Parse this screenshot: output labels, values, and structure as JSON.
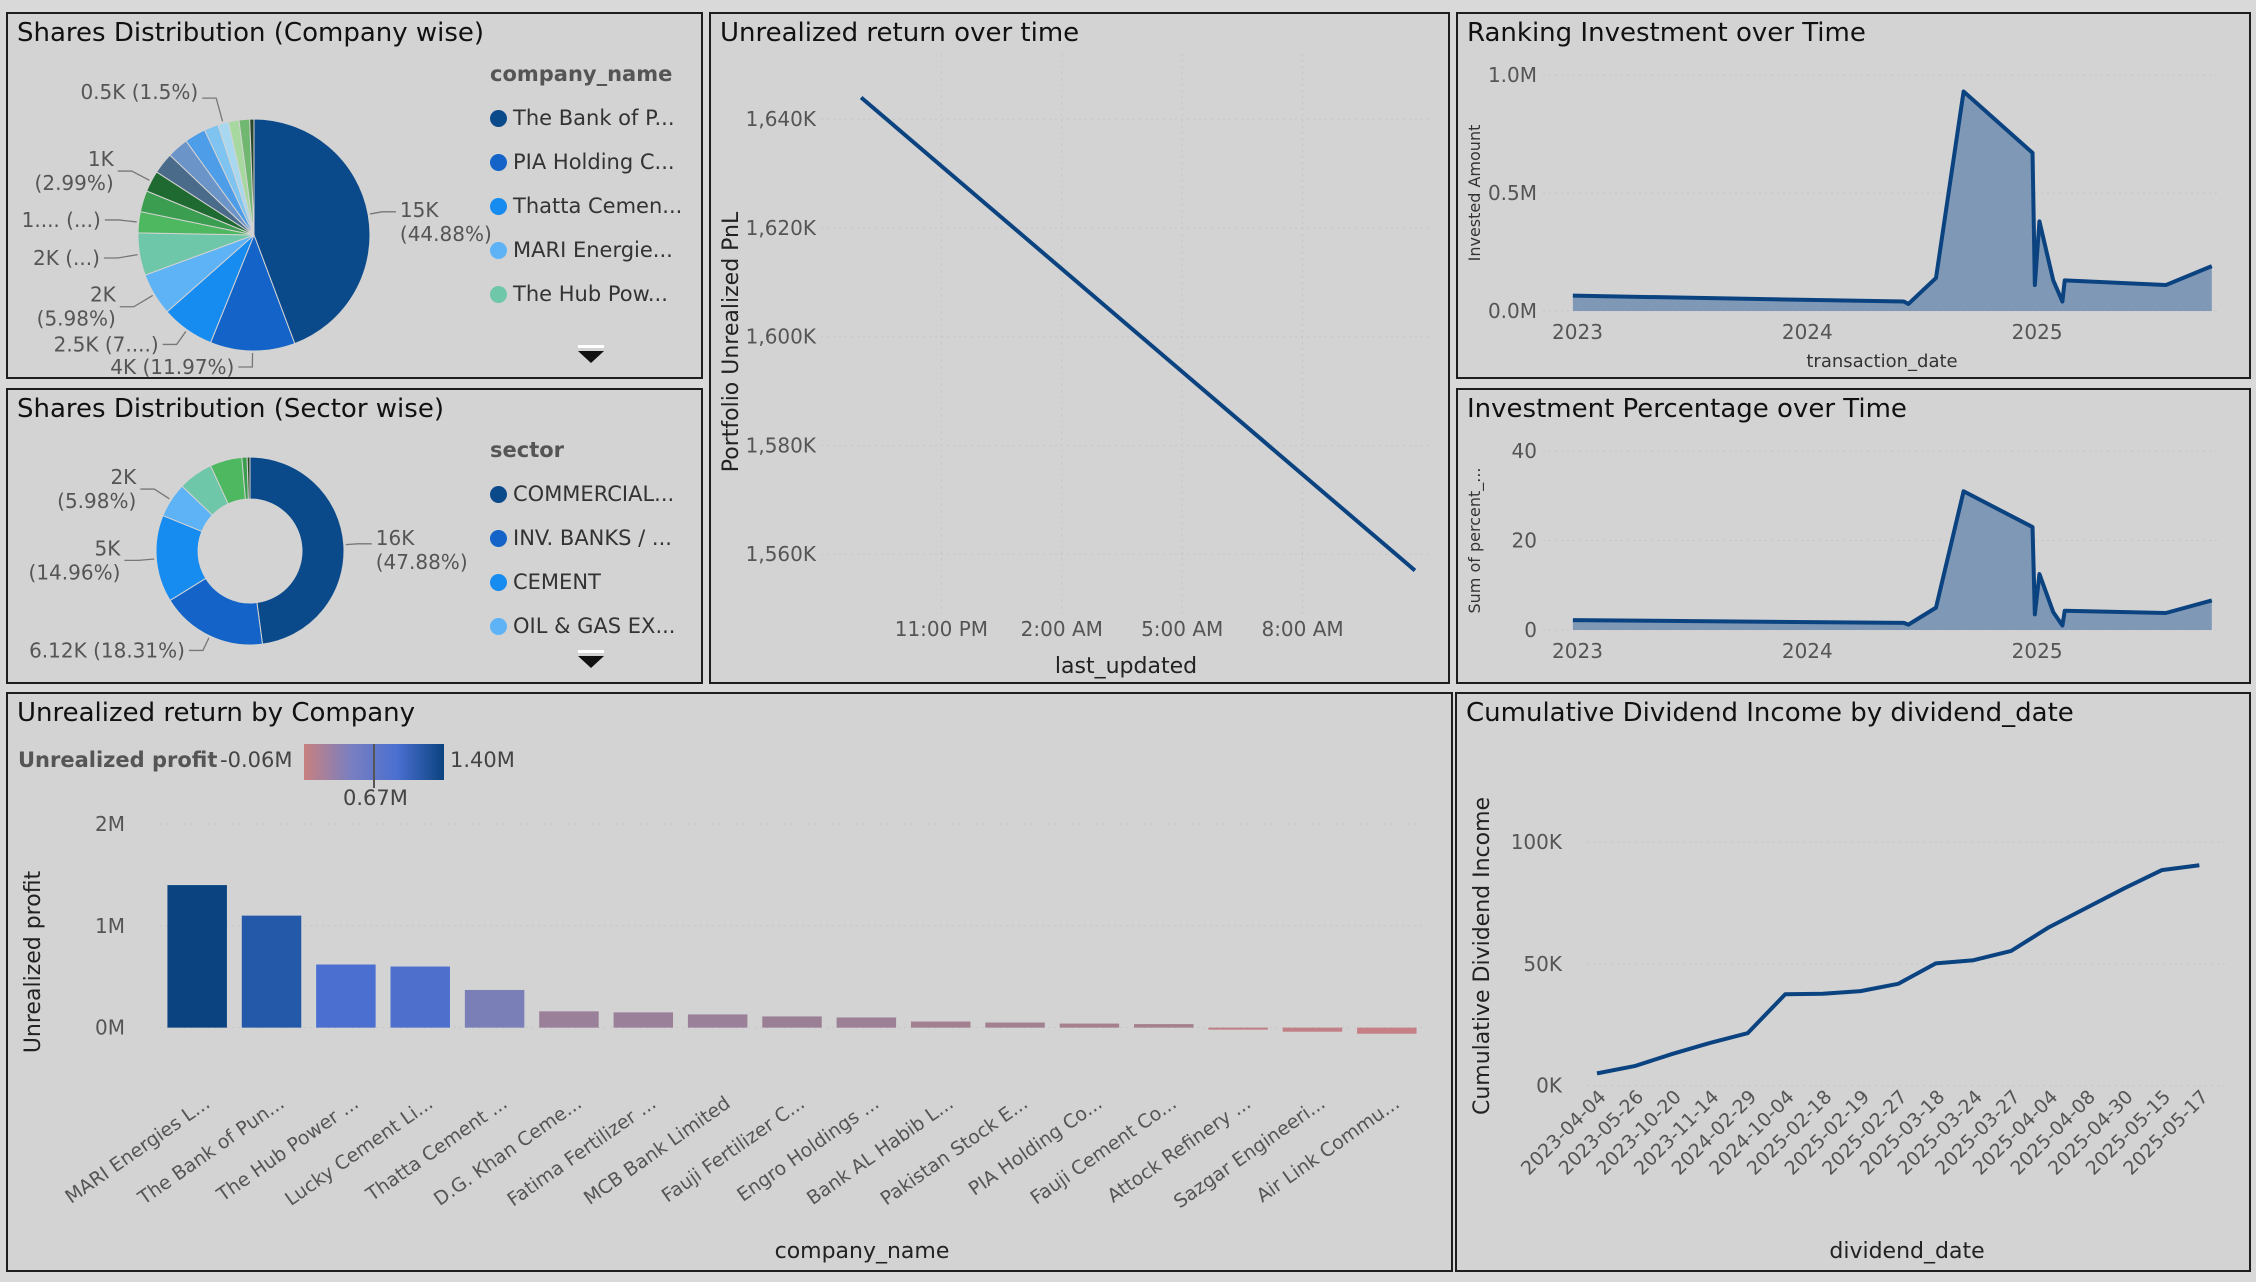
{
  "panels": {
    "company_pie": {
      "title": "Shares Distribution (Company wise)",
      "legend_title": "company_name"
    },
    "sector_donut": {
      "title": "Shares Distribution (Sector wise)",
      "legend_title": "sector"
    },
    "unrealized_time": {
      "title": "Unrealized return over time"
    },
    "ranking": {
      "title": "Ranking Investment over Time"
    },
    "percentage": {
      "title": "Investment Percentage over Time"
    },
    "by_company": {
      "title": "Unrealized return by Company",
      "gradient_title": "Unrealized profit",
      "gradient_min": "-0.06M",
      "gradient_mid": "0.67M",
      "gradient_max": "1.40M"
    },
    "dividend": {
      "title": "Cumulative Dividend Income by dividend_date"
    }
  },
  "colors": {
    "primary": "#0b4380",
    "area": "#7f98b6",
    "panel_bg": "#d3d3d3"
  },
  "icons": {
    "more": "chevron-down-icon"
  },
  "chart_data": [
    {
      "id": "company_pie",
      "type": "pie",
      "legend": [
        "The Bank of P...",
        "PIA Holding C...",
        "Thatta Cemen...",
        "MARI Energie...",
        "The Hub Pow..."
      ],
      "slices": [
        {
          "value": 44.88,
          "color": "#0b4a8a",
          "label": "15K\n(44.88%)"
        },
        {
          "value": 11.97,
          "color": "#1363c8",
          "label": "4K (11.97%)"
        },
        {
          "value": 7.48,
          "color": "#168bf0",
          "label": "2.5K (7....)"
        },
        {
          "value": 5.98,
          "color": "#5db3f5",
          "label": "2K\n(5.98%)"
        },
        {
          "value": 5.98,
          "color": "#6ec7a8",
          "label": "2K (...)"
        },
        {
          "value": 2.99,
          "color": "#4db860",
          "label": "1.... (...)"
        },
        {
          "value": 2.99,
          "color": "#3a9d4f",
          "label": ""
        },
        {
          "value": 2.99,
          "color": "#1f6a30",
          "label": "1K\n(2.99%)"
        },
        {
          "value": 2.99,
          "color": "#4a6b8a",
          "label": ""
        },
        {
          "value": 2.99,
          "color": "#6b95c8",
          "label": ""
        },
        {
          "value": 2.99,
          "color": "#4d9de8",
          "label": ""
        },
        {
          "value": 2.0,
          "color": "#7fc3f0",
          "label": ""
        },
        {
          "value": 1.5,
          "color": "#a8d8f0",
          "label": "0.5K (1.5%)"
        },
        {
          "value": 1.5,
          "color": "#a6d8a0",
          "label": ""
        },
        {
          "value": 1.5,
          "color": "#70b870",
          "label": ""
        },
        {
          "value": 0.6,
          "color": "#2b4a2b",
          "label": ""
        }
      ]
    },
    {
      "id": "sector_donut",
      "type": "pie",
      "legend": [
        "COMMERCIAL...",
        "INV. BANKS / ...",
        "CEMENT",
        "OIL & GAS EX..."
      ],
      "slices": [
        {
          "value": 47.88,
          "color": "#0b4a8a",
          "label": "16K\n(47.88%)"
        },
        {
          "value": 18.31,
          "color": "#1363c8",
          "label": "6.12K (18.31%)"
        },
        {
          "value": 14.96,
          "color": "#168bf0",
          "label": "5K\n(14.96%)"
        },
        {
          "value": 5.98,
          "color": "#5db3f5",
          "label": "2K\n(5.98%)"
        },
        {
          "value": 5.98,
          "color": "#6ec7a8",
          "label": ""
        },
        {
          "value": 5.5,
          "color": "#4db860",
          "label": ""
        },
        {
          "value": 0.9,
          "color": "#3a9d4f",
          "label": ""
        },
        {
          "value": 0.49,
          "color": "#2b4a2b",
          "label": ""
        }
      ]
    },
    {
      "id": "unrealized_time",
      "type": "line",
      "xlabel": "last_updated",
      "ylabel": "Portfolio Unrealized PnL",
      "x_ticks": [
        "11:00 PM",
        "2:00 AM",
        "5:00 AM",
        "8:00 AM"
      ],
      "x_tick_pos": [
        2.0,
        5.0,
        8.0,
        11.0
      ],
      "x_range": [
        -1.0,
        14.2
      ],
      "y_ticks": [
        "1,560K",
        "1,580K",
        "1,600K",
        "1,620K",
        "1,640K"
      ],
      "y_tick_vals": [
        1560,
        1580,
        1600,
        1620,
        1640
      ],
      "ylim": [
        1549,
        1652
      ],
      "points": [
        [
          0.0,
          1644
        ],
        [
          13.8,
          1557
        ]
      ]
    },
    {
      "id": "ranking",
      "type": "area",
      "xlabel": "transaction_date",
      "ylabel": "Invested Amount",
      "x_ticks": [
        "2023",
        "2024",
        "2025"
      ],
      "x_tick_vals": [
        2023,
        2024,
        2025
      ],
      "x_range": [
        2022.85,
        2025.8
      ],
      "y_ticks": [
        "0.0M",
        "0.5M",
        "1.0M"
      ],
      "y_tick_vals": [
        0,
        0.5,
        1.0
      ],
      "ylim": [
        0,
        1.0
      ],
      "points": [
        [
          2022.98,
          0.065
        ],
        [
          2024.42,
          0.04
        ],
        [
          2024.44,
          0.03
        ],
        [
          2024.56,
          0.14
        ],
        [
          2024.68,
          0.93
        ],
        [
          2024.98,
          0.67
        ],
        [
          2024.99,
          0.11
        ],
        [
          2025.01,
          0.38
        ],
        [
          2025.07,
          0.13
        ],
        [
          2025.11,
          0.04
        ],
        [
          2025.12,
          0.13
        ],
        [
          2025.56,
          0.11
        ],
        [
          2025.76,
          0.19
        ]
      ]
    },
    {
      "id": "percentage",
      "type": "area",
      "xlabel": "",
      "ylabel": "Sum of percent_...",
      "x_ticks": [
        "2023",
        "2024",
        "2025"
      ],
      "x_tick_vals": [
        2023,
        2024,
        2025
      ],
      "x_range": [
        2022.85,
        2025.8
      ],
      "y_ticks": [
        "0",
        "20",
        "40"
      ],
      "y_tick_vals": [
        0,
        20,
        40
      ],
      "ylim": [
        0,
        40
      ],
      "points": [
        [
          2022.98,
          2.2
        ],
        [
          2024.42,
          1.6
        ],
        [
          2024.44,
          1.2
        ],
        [
          2024.56,
          5.0
        ],
        [
          2024.68,
          31.0
        ],
        [
          2024.98,
          23.0
        ],
        [
          2024.99,
          3.5
        ],
        [
          2025.01,
          12.5
        ],
        [
          2025.07,
          4.0
        ],
        [
          2025.11,
          1.0
        ],
        [
          2025.12,
          4.3
        ],
        [
          2025.56,
          3.8
        ],
        [
          2025.76,
          6.6
        ]
      ]
    },
    {
      "id": "by_company",
      "type": "bar",
      "xlabel": "company_name",
      "ylabel": "Unrealized profit",
      "y_ticks": [
        "0M",
        "1M",
        "2M"
      ],
      "y_tick_vals": [
        0,
        1,
        2
      ],
      "ylim": [
        -0.2,
        2.0
      ],
      "categories": [
        "MARI Energies L...",
        "The Bank of Pun...",
        "The Hub Power ...",
        "Lucky Cement Li...",
        "Thatta Cement ...",
        "D.G. Khan Ceme...",
        "Fatima Fertilizer ...",
        "MCB Bank Limited",
        "Fauji Fertilizer C...",
        "Engro Holdings ...",
        "Bank AL Habib L...",
        "Pakistan Stock E...",
        "PIA Holding Co...",
        "Fauji Cement Co...",
        "Attock Refinery ...",
        "Sazgar Engineeri...",
        "Air Link Commu..."
      ],
      "values": [
        1.4,
        1.1,
        0.62,
        0.6,
        0.37,
        0.16,
        0.15,
        0.13,
        0.11,
        0.1,
        0.06,
        0.05,
        0.04,
        0.035,
        -0.01,
        -0.04,
        -0.06
      ],
      "colors": [
        "#0b4380",
        "#2458a8",
        "#4a6fd0",
        "#4e70cc",
        "#7a7fb8",
        "#9a8098",
        "#9a8098",
        "#9a8098",
        "#9b8095",
        "#9c8095",
        "#a18090",
        "#a38090",
        "#a5808d",
        "#a5808d",
        "#bd8087",
        "#c08086",
        "#c58086"
      ]
    },
    {
      "id": "dividend",
      "type": "line",
      "xlabel": "dividend_date",
      "ylabel": "Cumulative Dividend Income",
      "y_ticks": [
        "0K",
        "50K",
        "100K"
      ],
      "y_tick_vals": [
        0,
        50,
        100
      ],
      "ylim": [
        -1,
        105
      ],
      "categories": [
        "2023-04-04",
        "2023-05-26",
        "2023-10-20",
        "2023-11-14",
        "2024-02-29",
        "2024-10-04",
        "2025-02-18",
        "2025-02-19",
        "2025-02-27",
        "2025-03-18",
        "2025-03-24",
        "2025-03-27",
        "2025-04-04",
        "2025-04-08",
        "2025-04-30",
        "2025-05-15",
        "2025-05-17"
      ],
      "values": [
        5,
        8,
        13,
        17.5,
        21.5,
        37.5,
        37.7,
        38.8,
        41.8,
        50.2,
        51.5,
        55.3,
        65,
        73,
        81,
        88.5,
        90.5
      ]
    }
  ]
}
